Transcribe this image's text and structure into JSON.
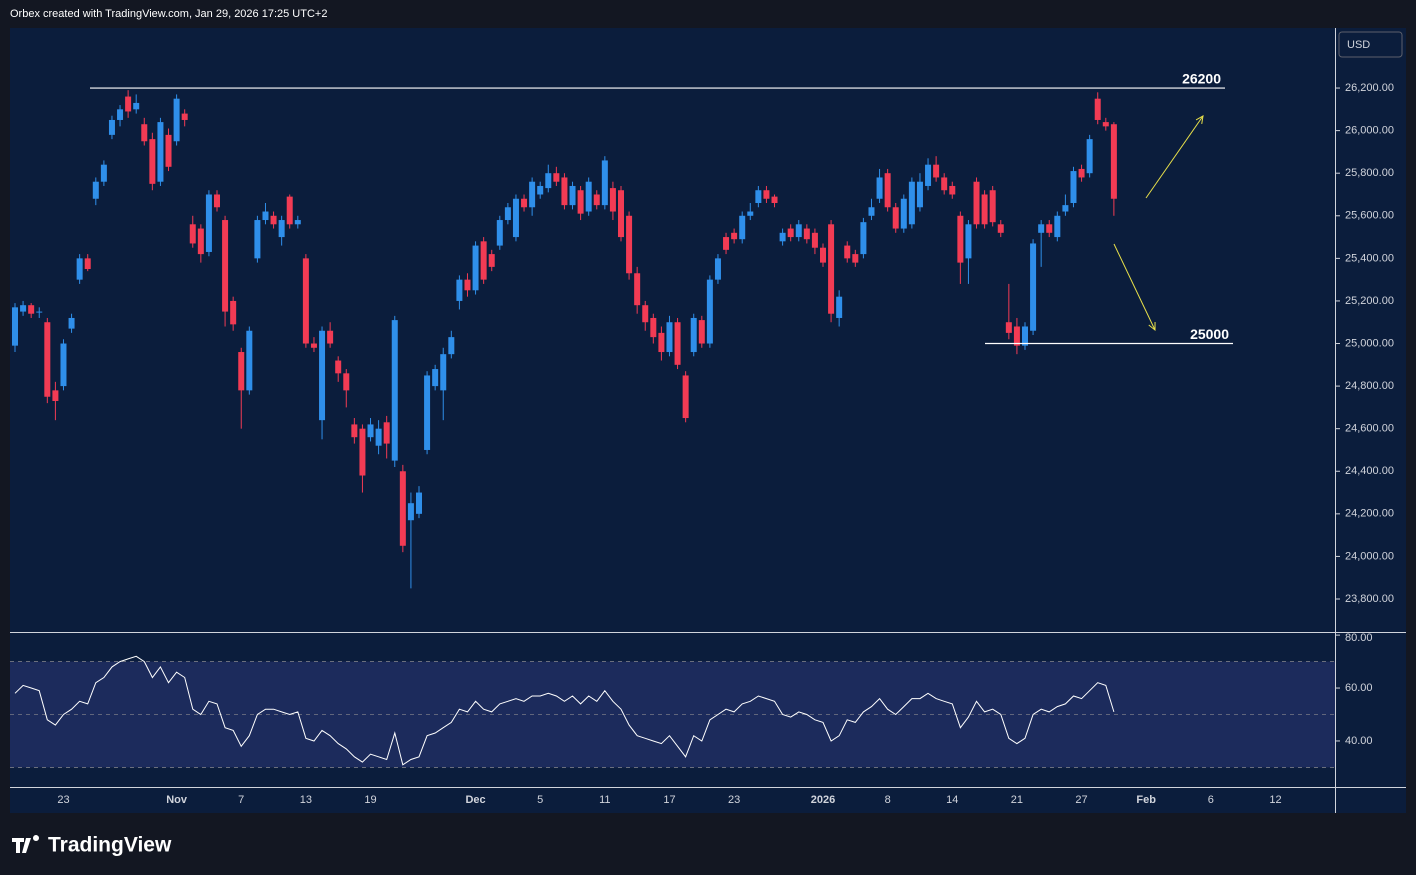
{
  "header": "Orbex created with TradingView.com, Jan 29, 2026 17:25 UTC+2",
  "brand": "TradingView",
  "chart_data": {
    "type": "candlestick",
    "currency": "USD",
    "categories": [
      null,
      null,
      null,
      null,
      null,
      null,
      "23",
      null,
      null,
      null,
      null,
      null,
      null,
      null,
      null,
      null,
      null,
      null,
      null,
      null,
      "Nov",
      null,
      null,
      null,
      null,
      null,
      null,
      null,
      "7",
      null,
      null,
      null,
      null,
      null,
      null,
      null,
      "13",
      null,
      null,
      null,
      null,
      null,
      null,
      null,
      "19",
      null,
      null,
      null,
      null,
      null,
      null,
      null,
      null,
      null,
      null,
      null,
      null,
      "Dec",
      null,
      null,
      null,
      null,
      null,
      null,
      null,
      "5",
      null,
      null,
      null,
      null,
      null,
      null,
      null,
      "11",
      null,
      null,
      null,
      null,
      null,
      null,
      null,
      "17",
      null,
      null,
      null,
      null,
      null,
      null,
      null,
      "23",
      null,
      null,
      null,
      null,
      null,
      null,
      null,
      null,
      null,
      null,
      "2026",
      null,
      null,
      null,
      null,
      null,
      null,
      null,
      "8",
      null,
      null,
      null,
      null,
      null,
      null,
      null,
      "14",
      null,
      null,
      null,
      null,
      null,
      null,
      null,
      "21",
      null,
      null,
      null,
      null,
      null,
      null,
      null,
      "27",
      null,
      null,
      null,
      null,
      null,
      null,
      null,
      "Feb",
      null,
      null,
      null,
      null,
      null,
      null,
      null,
      "6",
      null,
      null,
      null,
      null,
      null,
      null,
      null,
      "12",
      null,
      null,
      null
    ],
    "open": [
      24990,
      25150,
      25180,
      25150,
      25100,
      24780,
      24800,
      25070,
      25300,
      25400,
      25680,
      25760,
      25980,
      26050,
      26160,
      26100,
      26030,
      25960,
      25760,
      25980,
      25950,
      26080,
      25560,
      25540,
      25430,
      25700,
      25580,
      25200,
      24960,
      24780,
      25400,
      25580,
      25600,
      25500,
      25690,
      25560,
      25400,
      25000,
      24640,
      25060,
      24920,
      24860,
      24620,
      24600,
      24560,
      24520,
      24630,
      24450,
      24400,
      24170,
      24200,
      24500,
      24800,
      24780,
      24950,
      25200,
      25300,
      25250,
      25480,
      25420,
      25460,
      25580,
      25500,
      25680,
      25640,
      25700,
      25730,
      25800,
      25780,
      25650,
      25720,
      25620,
      25700,
      25650,
      25730,
      25720,
      25600,
      25330,
      25180,
      25120,
      25050,
      24960,
      25100,
      24850,
      24960,
      25110,
      25000,
      25300,
      25500,
      25520,
      25490,
      25600,
      25660,
      25720,
      25690,
      25480,
      25540,
      25500,
      25540,
      25520,
      25450,
      25560,
      25120,
      25460,
      25420,
      25420,
      25600,
      25680,
      25800,
      25640,
      25540,
      25560,
      25640,
      25740,
      25840,
      25780,
      25740,
      25600,
      25400,
      25760,
      25700,
      25720,
      25560,
      25100,
      25080,
      24990,
      25060,
      25520,
      25560,
      25500,
      25620,
      25660,
      25820,
      25800,
      26150,
      26040,
      26030,
      null,
      null,
      null,
      null,
      null,
      null,
      null,
      null,
      null,
      null,
      null,
      null,
      null,
      null,
      null,
      null,
      null,
      null,
      null,
      null,
      null,
      null,
      null
    ],
    "high": [
      25190,
      25200,
      25190,
      25170,
      25120,
      24820,
      25020,
      25140,
      25420,
      25420,
      25780,
      25860,
      26070,
      26120,
      26190,
      26170,
      26060,
      25990,
      26060,
      26010,
      26170,
      26100,
      25600,
      25560,
      25720,
      25720,
      25600,
      25220,
      24980,
      25080,
      25600,
      25660,
      25620,
      25600,
      25700,
      25600,
      25420,
      25030,
      25080,
      25100,
      24940,
      24880,
      24650,
      24620,
      24650,
      24640,
      24660,
      25130,
      24430,
      24300,
      24330,
      24870,
      24900,
      24980,
      25060,
      25320,
      25330,
      25480,
      25500,
      25440,
      25600,
      25660,
      25700,
      25700,
      25780,
      25760,
      25840,
      25830,
      25800,
      25760,
      25740,
      25780,
      25720,
      25880,
      25760,
      25740,
      25620,
      25360,
      25200,
      25140,
      25080,
      25130,
      25120,
      24870,
      25140,
      25130,
      25320,
      25420,
      25520,
      25540,
      25620,
      25660,
      25740,
      25740,
      25700,
      25540,
      25560,
      25580,
      25560,
      25540,
      25470,
      25580,
      25250,
      25480,
      25440,
      25590,
      25680,
      25820,
      25820,
      25660,
      25700,
      25780,
      25800,
      25870,
      25880,
      25800,
      25760,
      25620,
      25580,
      25780,
      25720,
      25740,
      25580,
      25280,
      25120,
      25100,
      25490,
      25580,
      25580,
      25620,
      25700,
      25830,
      25840,
      25980,
      26180,
      26060,
      26040,
      null,
      null,
      null,
      null,
      null,
      null,
      null,
      null,
      null,
      null,
      null,
      null,
      null,
      null,
      null,
      null,
      null,
      null,
      null,
      null,
      null,
      null,
      null
    ],
    "low": [
      24960,
      25130,
      25120,
      25120,
      24720,
      24640,
      24780,
      25050,
      25280,
      25340,
      25650,
      25740,
      25960,
      26020,
      26060,
      26080,
      25930,
      25720,
      25740,
      25810,
      25930,
      26020,
      25450,
      25380,
      25410,
      25620,
      25080,
      25060,
      24600,
      24760,
      25380,
      25560,
      25540,
      25460,
      25540,
      25540,
      24980,
      24960,
      24550,
      24980,
      24820,
      24700,
      24530,
      24300,
      24540,
      24480,
      24460,
      24420,
      24020,
      23850,
      24180,
      24480,
      24780,
      24640,
      24930,
      25160,
      25220,
      25230,
      25280,
      25340,
      25440,
      25560,
      25480,
      25620,
      25600,
      25680,
      25710,
      25740,
      25630,
      25630,
      25580,
      25600,
      25630,
      25630,
      25580,
      25480,
      25300,
      25140,
      25060,
      25000,
      24920,
      24940,
      24880,
      24630,
      24940,
      24980,
      24980,
      25280,
      25420,
      25470,
      25470,
      25580,
      25640,
      25660,
      25640,
      25460,
      25480,
      25480,
      25470,
      25420,
      25360,
      25100,
      25080,
      25380,
      25360,
      25400,
      25580,
      25660,
      25620,
      25520,
      25520,
      25540,
      25620,
      25720,
      25760,
      25700,
      25680,
      25280,
      25280,
      25540,
      25540,
      25550,
      25500,
      25020,
      24950,
      24970,
      25040,
      25360,
      25500,
      25480,
      25600,
      25640,
      25760,
      25780,
      26030,
      26000,
      25600,
      null,
      null,
      null,
      null,
      null,
      null,
      null,
      null,
      null,
      null,
      null,
      null,
      null,
      null,
      null,
      null,
      null,
      null,
      null,
      null,
      null,
      null,
      null
    ],
    "close": [
      25170,
      25180,
      25140,
      25150,
      24750,
      24730,
      25000,
      25120,
      25400,
      25350,
      25760,
      25840,
      26050,
      26100,
      26090,
      26130,
      25950,
      25750,
      26040,
      25830,
      26150,
      26050,
      25470,
      25420,
      25700,
      25640,
      25150,
      25090,
      24780,
      25060,
      25580,
      25620,
      25560,
      25580,
      25560,
      25580,
      25000,
      24980,
      25060,
      25000,
      24860,
      24780,
      24560,
      24380,
      24620,
      24600,
      24530,
      25110,
      24050,
      24250,
      24300,
      24850,
      24880,
      24950,
      25030,
      25300,
      25250,
      25460,
      25300,
      25360,
      25580,
      25640,
      25680,
      25640,
      25760,
      25740,
      25800,
      25760,
      25650,
      25740,
      25610,
      25760,
      25650,
      25860,
      25620,
      25500,
      25330,
      25180,
      25100,
      25030,
      24960,
      25100,
      24900,
      24650,
      25120,
      25000,
      25300,
      25400,
      25440,
      25490,
      25600,
      25620,
      25720,
      25680,
      25660,
      25520,
      25500,
      25560,
      25490,
      25450,
      25380,
      25140,
      25220,
      25400,
      25380,
      25570,
      25640,
      25780,
      25640,
      25540,
      25680,
      25760,
      25760,
      25840,
      25780,
      25720,
      25700,
      25380,
      25560,
      25560,
      25560,
      25570,
      25520,
      25050,
      24990,
      25080,
      25470,
      25560,
      25520,
      25600,
      25650,
      25810,
      25780,
      25960,
      26050,
      26020,
      25680,
      null,
      null,
      null,
      null,
      null,
      null,
      null,
      null,
      null,
      null,
      null,
      null,
      null,
      null,
      null,
      null,
      null,
      null,
      null,
      null,
      null,
      null,
      null
    ],
    "colors": {
      "up": "#2f8fea",
      "down": "#f23b54"
    },
    "ylim": [
      23645,
      26482
    ],
    "yticks": [
      {
        "value": 23800,
        "label": "23,800.00"
      },
      {
        "value": 24000,
        "label": "24,000.00"
      },
      {
        "value": 24200,
        "label": "24,200.00"
      },
      {
        "value": 24400,
        "label": "24,400.00"
      },
      {
        "value": 24600,
        "label": "24,600.00"
      },
      {
        "value": 24800,
        "label": "24,800.00"
      },
      {
        "value": 25000,
        "label": "25,000.00"
      },
      {
        "value": 25200,
        "label": "25,200.00"
      },
      {
        "value": 25400,
        "label": "25,400.00"
      },
      {
        "value": 25600,
        "label": "25,600.00"
      },
      {
        "value": 25800,
        "label": "25,800.00"
      },
      {
        "value": 26000,
        "label": "26,000.00"
      },
      {
        "value": 26200,
        "label": "26,200.00"
      }
    ],
    "levels": [
      26200,
      25000
    ],
    "level_color": "#ffffff",
    "arrow_color": "#e8e04a",
    "indicator": {
      "color": "#ffffff",
      "band_color": "#1c2b5c",
      "values": [
        58,
        61,
        60,
        59,
        48,
        46,
        50,
        52,
        55,
        54,
        62,
        64,
        68,
        70,
        71,
        72,
        70,
        64,
        68,
        62,
        66,
        64,
        52,
        50,
        55,
        54,
        45,
        44,
        38,
        42,
        50,
        52,
        52,
        51,
        50,
        51,
        41,
        40,
        44,
        42,
        39,
        37,
        34,
        32,
        35,
        34,
        33,
        43,
        31,
        33,
        34,
        42,
        43,
        45,
        47,
        52,
        51,
        55,
        52,
        51,
        54,
        55,
        56,
        55,
        57,
        57,
        58,
        57,
        55,
        57,
        54,
        57,
        55,
        59,
        55,
        52,
        46,
        42,
        41,
        40,
        39,
        42,
        38,
        34,
        42,
        40,
        48,
        50,
        52,
        51,
        54,
        55,
        57,
        56,
        55,
        50,
        49,
        51,
        50,
        48,
        47,
        40,
        42,
        48,
        47,
        51,
        53,
        56,
        52,
        50,
        53,
        56,
        56,
        58,
        56,
        55,
        54,
        45,
        49,
        55,
        51,
        52,
        50,
        41,
        39,
        41,
        50,
        52,
        51,
        53,
        54,
        57,
        56,
        59,
        62,
        61,
        51,
        null,
        null,
        null,
        null,
        null,
        null,
        null,
        null,
        null,
        null,
        null,
        null,
        null,
        null,
        null,
        null,
        null,
        null,
        null,
        null,
        null,
        null,
        null
      ],
      "ylim": [
        22.6,
        80.8
      ],
      "yticks": [
        {
          "value": 40,
          "label": "40.00"
        },
        {
          "value": 60,
          "label": "60.00"
        },
        {
          "value": 80,
          "label": "80.00"
        }
      ],
      "bands": [
        30,
        50,
        70
      ]
    }
  }
}
